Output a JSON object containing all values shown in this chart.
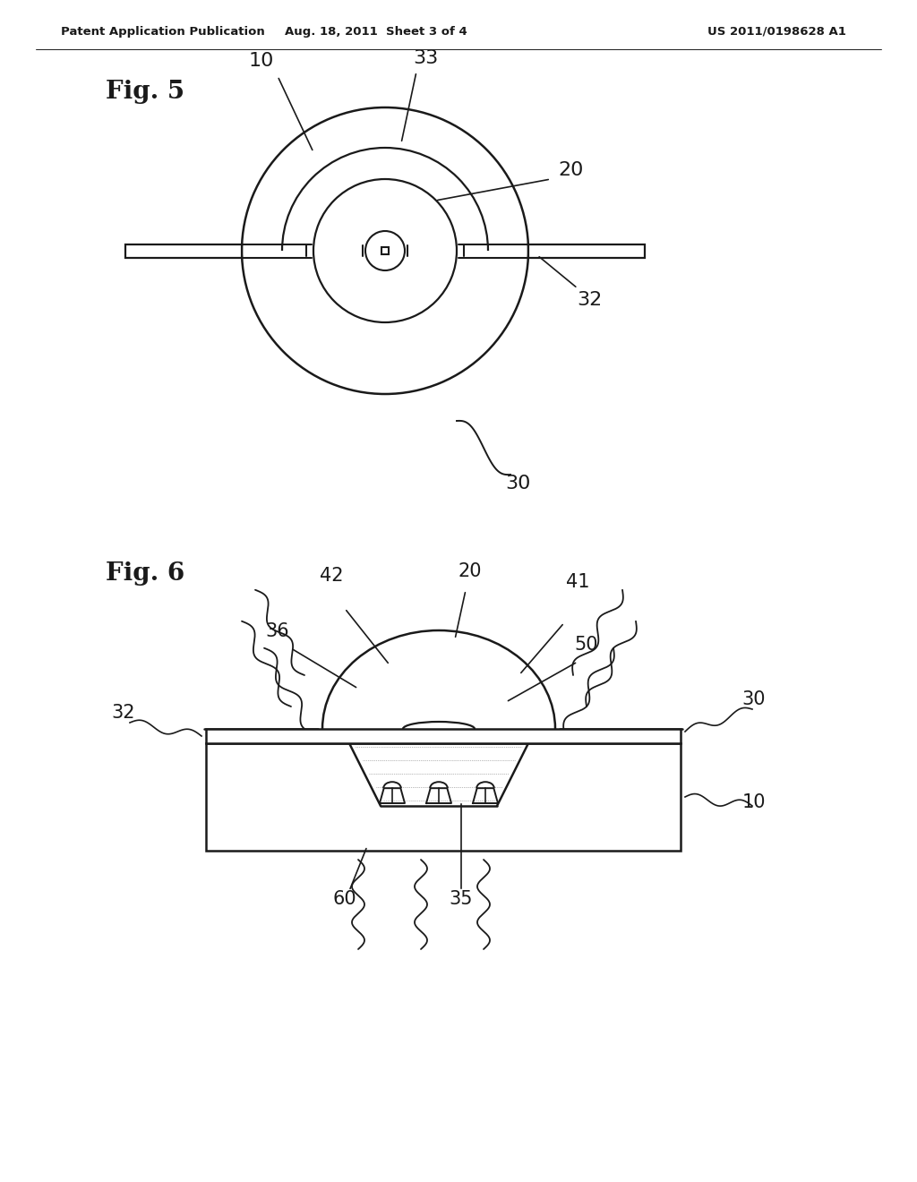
{
  "bg_color": "#ffffff",
  "line_color": "#1a1a1a",
  "header_left": "Patent Application Publication",
  "header_center": "Aug. 18, 2011  Sheet 3 of 4",
  "header_right": "US 2011/0198628 A1",
  "fig5_label": "Fig. 5",
  "fig6_label": "Fig. 6"
}
